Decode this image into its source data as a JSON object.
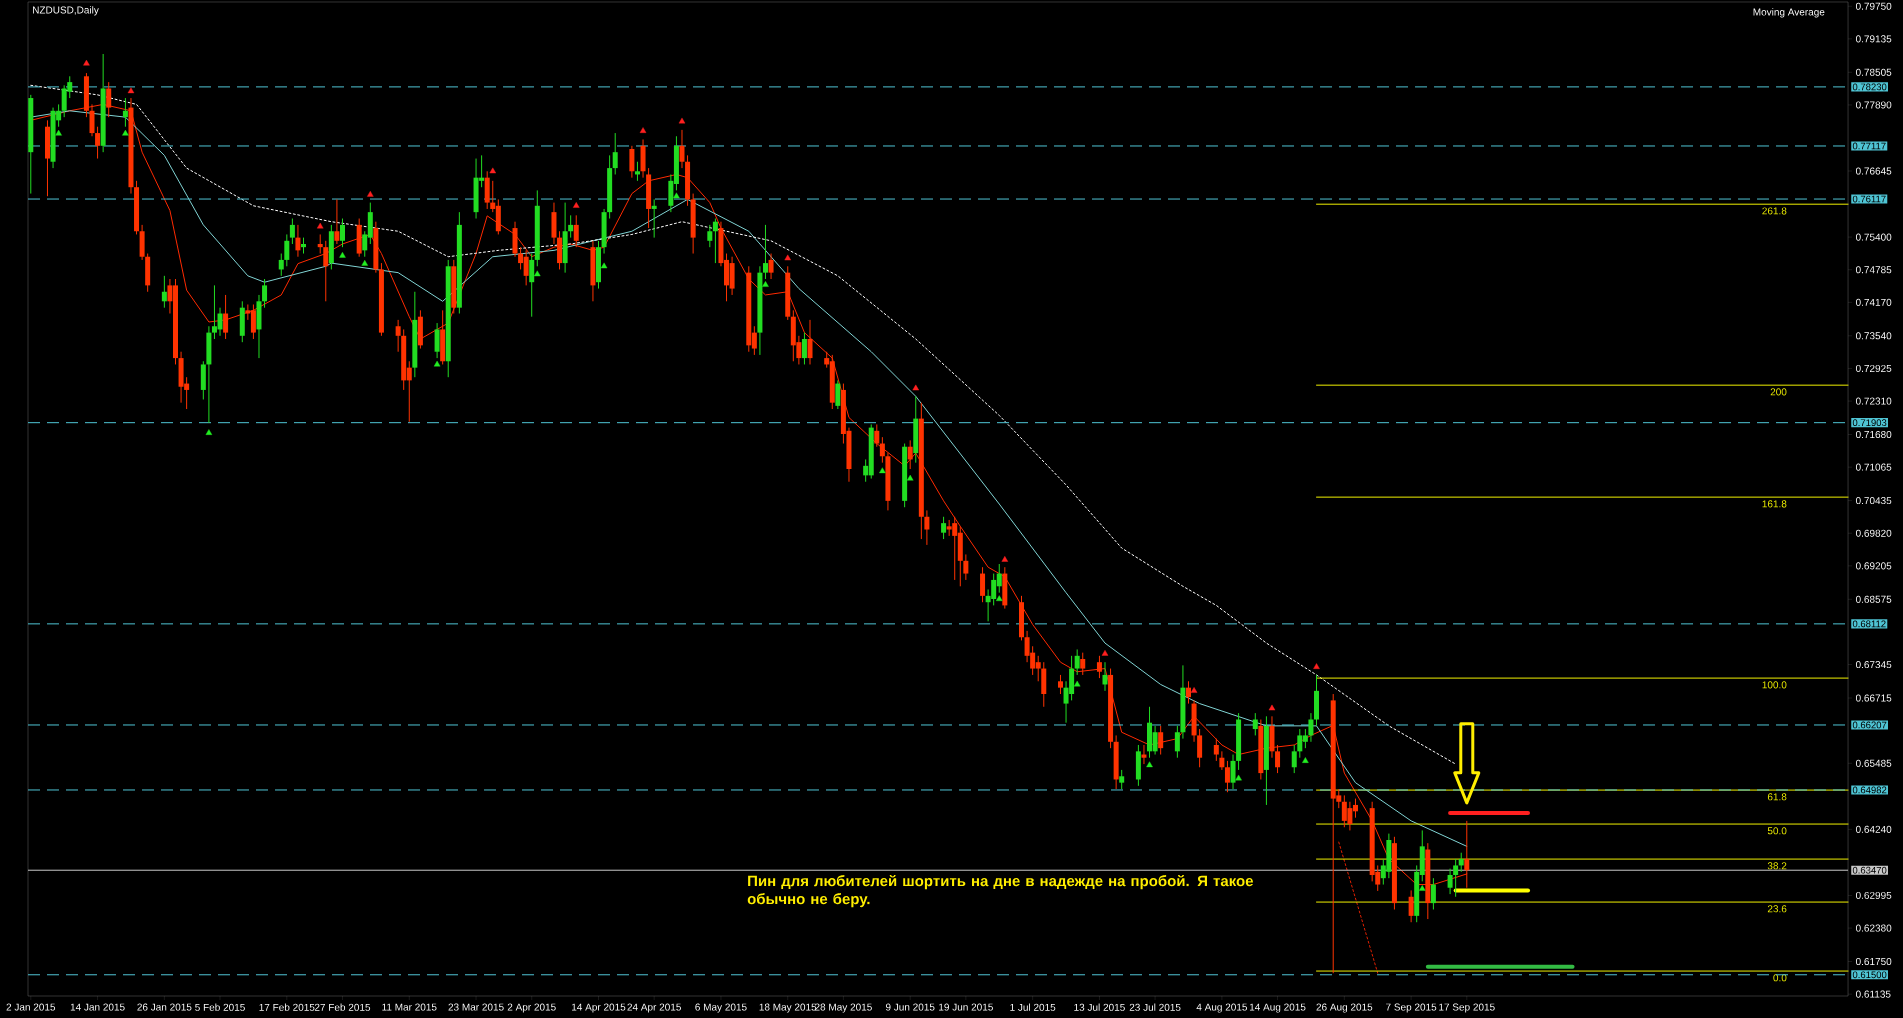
{
  "chart_data": {
    "type": "candlestick",
    "title": "NZDUSD,Daily",
    "annotations": [
      "Moving Average",
      "Пин для любителей шортить на дне в надежде на пробой. Я такое обычно не беру."
    ],
    "xlim": [
      "2015-01-01T12:00",
      "2015-11-24T12:00"
    ],
    "ylim": [
      0.611,
      0.7983
    ],
    "xticks": [
      {
        "value": "2015-01-02",
        "label": "2 Jan 2015"
      },
      {
        "value": "2015-01-14",
        "label": "14 Jan 2015"
      },
      {
        "value": "2015-01-26",
        "label": "26 Jan 2015"
      },
      {
        "value": "2015-02-05",
        "label": "5 Feb 2015"
      },
      {
        "value": "2015-02-17",
        "label": "17 Feb 2015"
      },
      {
        "value": "2015-02-27",
        "label": "27 Feb 2015"
      },
      {
        "value": "2015-03-11",
        "label": "11 Mar 2015"
      },
      {
        "value": "2015-03-23",
        "label": "23 Mar 2015"
      },
      {
        "value": "2015-04-02",
        "label": "2 Apr 2015"
      },
      {
        "value": "2015-04-14",
        "label": "14 Apr 2015"
      },
      {
        "value": "2015-04-24",
        "label": "24 Apr 2015"
      },
      {
        "value": "2015-05-06",
        "label": "6 May 2015"
      },
      {
        "value": "2015-05-18",
        "label": "18 May 2015"
      },
      {
        "value": "2015-05-28",
        "label": "28 May 2015"
      },
      {
        "value": "2015-06-09",
        "label": "9 Jun 2015"
      },
      {
        "value": "2015-06-19",
        "label": "19 Jun 2015"
      },
      {
        "value": "2015-07-01",
        "label": "1 Jul 2015"
      },
      {
        "value": "2015-07-13",
        "label": "13 Jul 2015"
      },
      {
        "value": "2015-07-23",
        "label": "23 Jul 2015"
      },
      {
        "value": "2015-08-04",
        "label": "4 Aug 2015"
      },
      {
        "value": "2015-08-14",
        "label": "14 Aug 2015"
      },
      {
        "value": "2015-08-26",
        "label": "26 Aug 2015"
      },
      {
        "value": "2015-09-07",
        "label": "7 Sep 2015"
      },
      {
        "value": "2015-09-17",
        "label": "17 Sep 2015"
      }
    ],
    "yticks": [
      {
        "value": 0.7975,
        "label": "0.79750"
      },
      {
        "value": 0.79135,
        "label": "0.79135"
      },
      {
        "value": 0.78505,
        "label": "0.78505"
      },
      {
        "value": 0.7789,
        "label": "0.77890"
      },
      {
        "value": 0.76645,
        "label": "0.76645"
      },
      {
        "value": 0.754,
        "label": "0.75400"
      },
      {
        "value": 0.74785,
        "label": "0.74785"
      },
      {
        "value": 0.7417,
        "label": "0.74170"
      },
      {
        "value": 0.7354,
        "label": "0.73540"
      },
      {
        "value": 0.72925,
        "label": "0.72925"
      },
      {
        "value": 0.7231,
        "label": "0.72310"
      },
      {
        "value": 0.7168,
        "label": "0.71680"
      },
      {
        "value": 0.71065,
        "label": "0.71065"
      },
      {
        "value": 0.70435,
        "label": "0.70435"
      },
      {
        "value": 0.6982,
        "label": "0.69820"
      },
      {
        "value": 0.69205,
        "label": "0.69205"
      },
      {
        "value": 0.68575,
        "label": "0.68575"
      },
      {
        "value": 0.67345,
        "label": "0.67345"
      },
      {
        "value": 0.66715,
        "label": "0.66715"
      },
      {
        "value": 0.65485,
        "label": "0.65485"
      },
      {
        "value": 0.6424,
        "label": "0.64240"
      },
      {
        "value": 0.62995,
        "label": "0.62995"
      },
      {
        "value": 0.6238,
        "label": "0.62380"
      },
      {
        "value": 0.6175,
        "label": "0.61750"
      },
      {
        "value": 0.61135,
        "label": "0.61135"
      }
    ],
    "ref_lines": [
      {
        "axis": "y",
        "value": 0.7823,
        "label": "0.78230",
        "color": "#4fc4d4",
        "line_style": "dashed"
      },
      {
        "axis": "y",
        "value": 0.77117,
        "label": "0.77117",
        "color": "#4fc4d4",
        "line_style": "dashed"
      },
      {
        "axis": "y",
        "value": 0.76117,
        "label": "0.76117",
        "color": "#4fc4d4",
        "line_style": "dashed"
      },
      {
        "axis": "y",
        "value": 0.71903,
        "label": "0.71903",
        "color": "#4fc4d4",
        "line_style": "dashed"
      },
      {
        "axis": "y",
        "value": 0.68112,
        "label": "0.68112",
        "color": "#4fc4d4",
        "line_style": "dashed"
      },
      {
        "axis": "y",
        "value": 0.66207,
        "label": "0.66207",
        "color": "#4fc4d4",
        "line_style": "dashed"
      },
      {
        "axis": "y",
        "value": 0.64982,
        "label": "0.64982",
        "color": "#4fc4d4",
        "line_style": "dashed"
      },
      {
        "axis": "y",
        "value": 0.615,
        "label": "0.61500",
        "color": "#4fc4d4",
        "line_style": "dashed"
      },
      {
        "axis": "y",
        "value": 0.6347,
        "label": "0.63470",
        "color": "#c8c8c8",
        "line_style": "solid"
      }
    ],
    "x": [
      "2015-01-02",
      "2015-01-05",
      "2015-01-06",
      "2015-01-07",
      "2015-01-08",
      "2015-01-09",
      "2015-01-12",
      "2015-01-13",
      "2015-01-14",
      "2015-01-15",
      "2015-01-16",
      "2015-01-19",
      "2015-01-20",
      "2015-01-21",
      "2015-01-22",
      "2015-01-23",
      "2015-01-26",
      "2015-01-27",
      "2015-01-28",
      "2015-01-29",
      "2015-01-30",
      "2015-02-02",
      "2015-02-03",
      "2015-02-04",
      "2015-02-05",
      "2015-02-06",
      "2015-02-09",
      "2015-02-10",
      "2015-02-11",
      "2015-02-12",
      "2015-02-13",
      "2015-02-16",
      "2015-02-17",
      "2015-02-18",
      "2015-02-19",
      "2015-02-20",
      "2015-02-23",
      "2015-02-24",
      "2015-02-25",
      "2015-02-26",
      "2015-02-27",
      "2015-03-02",
      "2015-03-03",
      "2015-03-04",
      "2015-03-05",
      "2015-03-06",
      "2015-03-09",
      "2015-03-10",
      "2015-03-11",
      "2015-03-12",
      "2015-03-13",
      "2015-03-16",
      "2015-03-17",
      "2015-03-18",
      "2015-03-19",
      "2015-03-20",
      "2015-03-23",
      "2015-03-24",
      "2015-03-25",
      "2015-03-26",
      "2015-03-27",
      "2015-03-30",
      "2015-03-31",
      "2015-04-01",
      "2015-04-02",
      "2015-04-03",
      "2015-04-06",
      "2015-04-07",
      "2015-04-08",
      "2015-04-09",
      "2015-04-10",
      "2015-04-13",
      "2015-04-14",
      "2015-04-15",
      "2015-04-16",
      "2015-04-17",
      "2015-04-20",
      "2015-04-21",
      "2015-04-22",
      "2015-04-23",
      "2015-04-24",
      "2015-04-27",
      "2015-04-28",
      "2015-04-29",
      "2015-04-30",
      "2015-05-01",
      "2015-05-04",
      "2015-05-05",
      "2015-05-06",
      "2015-05-07",
      "2015-05-08",
      "2015-05-11",
      "2015-05-12",
      "2015-05-13",
      "2015-05-14",
      "2015-05-15",
      "2015-05-18",
      "2015-05-19",
      "2015-05-20",
      "2015-05-21",
      "2015-05-22",
      "2015-05-25",
      "2015-05-26",
      "2015-05-27",
      "2015-05-28",
      "2015-05-29",
      "2015-06-01",
      "2015-06-02",
      "2015-06-03",
      "2015-06-04",
      "2015-06-05",
      "2015-06-08",
      "2015-06-09",
      "2015-06-10",
      "2015-06-11",
      "2015-06-12",
      "2015-06-15",
      "2015-06-16",
      "2015-06-17",
      "2015-06-18",
      "2015-06-19",
      "2015-06-22",
      "2015-06-23",
      "2015-06-24",
      "2015-06-25",
      "2015-06-26",
      "2015-06-29",
      "2015-06-30",
      "2015-07-01",
      "2015-07-02",
      "2015-07-03",
      "2015-07-06",
      "2015-07-07",
      "2015-07-08",
      "2015-07-09",
      "2015-07-10",
      "2015-07-13",
      "2015-07-14",
      "2015-07-15",
      "2015-07-16",
      "2015-07-17",
      "2015-07-20",
      "2015-07-21",
      "2015-07-22",
      "2015-07-23",
      "2015-07-24",
      "2015-07-27",
      "2015-07-28",
      "2015-07-29",
      "2015-07-30",
      "2015-07-31",
      "2015-08-03",
      "2015-08-04",
      "2015-08-05",
      "2015-08-06",
      "2015-08-07",
      "2015-08-10",
      "2015-08-11",
      "2015-08-12",
      "2015-08-13",
      "2015-08-14",
      "2015-08-17",
      "2015-08-18",
      "2015-08-19",
      "2015-08-20",
      "2015-08-21",
      "2015-08-24",
      "2015-08-25",
      "2015-08-26",
      "2015-08-27",
      "2015-08-28",
      "2015-08-31",
      "2015-09-01",
      "2015-09-02",
      "2015-09-03",
      "2015-09-04",
      "2015-09-07",
      "2015-09-08",
      "2015-09-09",
      "2015-09-10",
      "2015-09-11",
      "2015-09-14",
      "2015-09-15",
      "2015-09-16",
      "2015-09-17"
    ],
    "ohlc": [
      [
        0.77,
        0.7808,
        0.7622,
        0.7802
      ],
      [
        0.7748,
        0.776,
        0.7617,
        0.7688
      ],
      [
        0.7682,
        0.7784,
        0.767,
        0.7778
      ],
      [
        0.776,
        0.779,
        0.7748,
        0.7778
      ],
      [
        0.7778,
        0.7826,
        0.7766,
        0.782
      ],
      [
        0.7814,
        0.7843,
        0.7802,
        0.7832
      ],
      [
        0.7843,
        0.7849,
        0.7766,
        0.7778
      ],
      [
        0.7778,
        0.779,
        0.773,
        0.7736
      ],
      [
        0.7736,
        0.7748,
        0.7688,
        0.7712
      ],
      [
        0.7712,
        0.7885,
        0.77,
        0.782
      ],
      [
        0.782,
        0.7832,
        0.7766,
        0.7784
      ],
      [
        0.7766,
        0.7802,
        0.7748,
        0.7778
      ],
      [
        0.7784,
        0.7802,
        0.7622,
        0.7634
      ],
      [
        0.7634,
        0.7646,
        0.7545,
        0.7551
      ],
      [
        0.7551,
        0.7563,
        0.7497,
        0.7503
      ],
      [
        0.7503,
        0.7509,
        0.7437,
        0.7449
      ],
      [
        0.7419,
        0.7467,
        0.7407,
        0.7437
      ],
      [
        0.7449,
        0.7461,
        0.7396,
        0.7419
      ],
      [
        0.7449,
        0.7461,
        0.73,
        0.7312
      ],
      [
        0.7312,
        0.7324,
        0.7228,
        0.7258
      ],
      [
        0.7264,
        0.7276,
        0.7216,
        0.7252
      ],
      [
        0.7252,
        0.7306,
        0.7234,
        0.73
      ],
      [
        0.73,
        0.7372,
        0.719,
        0.736
      ],
      [
        0.736,
        0.7449,
        0.7348,
        0.7372
      ],
      [
        0.7366,
        0.7407,
        0.7354,
        0.7396
      ],
      [
        0.7396,
        0.7431,
        0.7348,
        0.736
      ],
      [
        0.7354,
        0.7419,
        0.7342,
        0.7407
      ],
      [
        0.7402,
        0.7413,
        0.7384,
        0.7396
      ],
      [
        0.7402,
        0.7413,
        0.7348,
        0.736
      ],
      [
        0.7366,
        0.7431,
        0.7312,
        0.7419
      ],
      [
        0.7419,
        0.7461,
        0.7407,
        0.7449
      ],
      [
        0.7479,
        0.7509,
        0.7467,
        0.7497
      ],
      [
        0.7497,
        0.7545,
        0.7485,
        0.7533
      ],
      [
        0.7539,
        0.7575,
        0.7527,
        0.7563
      ],
      [
        0.7539,
        0.7563,
        0.7503,
        0.7515
      ],
      [
        0.7521,
        0.7539,
        0.7509,
        0.7527
      ],
      [
        0.7527,
        0.7545,
        0.7509,
        0.7521
      ],
      [
        0.7521,
        0.7533,
        0.7419,
        0.7485
      ],
      [
        0.7491,
        0.7563,
        0.7479,
        0.7551
      ],
      [
        0.7551,
        0.7611,
        0.7527,
        0.7533
      ],
      [
        0.7533,
        0.7575,
        0.7521,
        0.7563
      ],
      [
        0.7563,
        0.7575,
        0.7503,
        0.7509
      ],
      [
        0.7515,
        0.7551,
        0.7503,
        0.7545
      ],
      [
        0.7539,
        0.7605,
        0.7527,
        0.7587
      ],
      [
        0.7557,
        0.7569,
        0.7473,
        0.7479
      ],
      [
        0.7479,
        0.7491,
        0.7354,
        0.736
      ],
      [
        0.7372,
        0.7384,
        0.7324,
        0.7354
      ],
      [
        0.7354,
        0.7366,
        0.7252,
        0.727
      ],
      [
        0.7294,
        0.7306,
        0.7192,
        0.727
      ],
      [
        0.7294,
        0.7437,
        0.7276,
        0.7384
      ],
      [
        0.739,
        0.7402,
        0.733,
        0.7336
      ],
      [
        0.7324,
        0.7378,
        0.7312,
        0.7366
      ],
      [
        0.7366,
        0.7402,
        0.73,
        0.7306
      ],
      [
        0.7306,
        0.7497,
        0.7276,
        0.7485
      ],
      [
        0.7485,
        0.7497,
        0.7396,
        0.7407
      ],
      [
        0.7407,
        0.7587,
        0.7396,
        0.7563
      ],
      [
        0.7587,
        0.7688,
        0.7575,
        0.7652
      ],
      [
        0.7646,
        0.7694,
        0.7634,
        0.7652
      ],
      [
        0.7652,
        0.7664,
        0.7593,
        0.7605
      ],
      [
        0.7605,
        0.7646,
        0.7587,
        0.7593
      ],
      [
        0.7599,
        0.7611,
        0.7545,
        0.7551
      ],
      [
        0.7557,
        0.7569,
        0.7503,
        0.7509
      ],
      [
        0.7509,
        0.7521,
        0.7479,
        0.7491
      ],
      [
        0.7503,
        0.7515,
        0.7449,
        0.7467
      ],
      [
        0.7455,
        0.7509,
        0.739,
        0.7497
      ],
      [
        0.7497,
        0.7628,
        0.7485,
        0.7599
      ],
      [
        0.7587,
        0.7605,
        0.7527,
        0.7539
      ],
      [
        0.7539,
        0.7551,
        0.7479,
        0.7491
      ],
      [
        0.7491,
        0.7605,
        0.7473,
        0.7551
      ],
      [
        0.7551,
        0.7581,
        0.7539,
        0.7563
      ],
      [
        0.7563,
        0.7581,
        0.7521,
        0.7533
      ],
      [
        0.7521,
        0.7533,
        0.7419,
        0.7449
      ],
      [
        0.7455,
        0.7533,
        0.7443,
        0.7521
      ],
      [
        0.7521,
        0.7593,
        0.7509,
        0.7587
      ],
      [
        0.7587,
        0.7694,
        0.7575,
        0.767
      ],
      [
        0.767,
        0.7736,
        0.7658,
        0.77
      ],
      [
        0.7706,
        0.7712,
        0.7652,
        0.7664
      ],
      [
        0.7658,
        0.7682,
        0.7646,
        0.7664
      ],
      [
        0.7712,
        0.7724,
        0.7652,
        0.7664
      ],
      [
        0.7658,
        0.767,
        0.7557,
        0.7593
      ],
      [
        0.7593,
        0.7611,
        0.7539,
        0.7599
      ],
      [
        0.7599,
        0.7658,
        0.7587,
        0.7646
      ],
      [
        0.764,
        0.773,
        0.7628,
        0.7712
      ],
      [
        0.7712,
        0.7742,
        0.767,
        0.7682
      ],
      [
        0.7682,
        0.7694,
        0.7599,
        0.7611
      ],
      [
        0.7611,
        0.7622,
        0.7509,
        0.7539
      ],
      [
        0.7533,
        0.7563,
        0.7521,
        0.7551
      ],
      [
        0.7551,
        0.7575,
        0.7491,
        0.7569
      ],
      [
        0.7557,
        0.7569,
        0.7485,
        0.7491
      ],
      [
        0.7497,
        0.7509,
        0.7419,
        0.7449
      ],
      [
        0.7491,
        0.7503,
        0.7431,
        0.7443
      ],
      [
        0.7473,
        0.7485,
        0.7324,
        0.7336
      ],
      [
        0.736,
        0.7372,
        0.7318,
        0.733
      ],
      [
        0.736,
        0.7485,
        0.7318,
        0.7473
      ],
      [
        0.7473,
        0.7563,
        0.7461,
        0.7491
      ],
      [
        0.7497,
        0.7509,
        0.7461,
        0.7473
      ],
      [
        0.7473,
        0.7485,
        0.7384,
        0.739
      ],
      [
        0.739,
        0.7402,
        0.7306,
        0.7336
      ],
      [
        0.7342,
        0.7354,
        0.73,
        0.7312
      ],
      [
        0.7312,
        0.736,
        0.73,
        0.7348
      ],
      [
        0.7348,
        0.7384,
        0.73,
        0.7312
      ],
      [
        0.7312,
        0.7324,
        0.7294,
        0.73
      ],
      [
        0.7306,
        0.7318,
        0.7216,
        0.7228
      ],
      [
        0.7222,
        0.727,
        0.7216,
        0.7264
      ],
      [
        0.7252,
        0.7264,
        0.7151,
        0.7169
      ],
      [
        0.7175,
        0.7181,
        0.7079,
        0.7103
      ],
      [
        0.7091,
        0.7121,
        0.7079,
        0.7109
      ],
      [
        0.7091,
        0.7187,
        0.7085,
        0.7181
      ],
      [
        0.7175,
        0.7187,
        0.7145,
        0.7151
      ],
      [
        0.7151,
        0.7163,
        0.7115,
        0.7127
      ],
      [
        0.7127,
        0.7133,
        0.7025,
        0.7043
      ],
      [
        0.7043,
        0.7151,
        0.7031,
        0.7145
      ],
      [
        0.7145,
        0.7157,
        0.7103,
        0.7121
      ],
      [
        0.7133,
        0.724,
        0.7115,
        0.7198
      ],
      [
        0.7198,
        0.7228,
        0.6971,
        0.7013
      ],
      [
        0.7013,
        0.7025,
        0.696,
        0.6989
      ],
      [
        0.6983,
        0.7013,
        0.6971,
        0.7001
      ],
      [
        0.6995,
        0.7007,
        0.6977,
        0.6989
      ],
      [
        0.7001,
        0.7013,
        0.6894,
        0.6977
      ],
      [
        0.6983,
        0.6995,
        0.6882,
        0.693
      ],
      [
        0.693,
        0.6942,
        0.6894,
        0.6906
      ],
      [
        0.6906,
        0.6918,
        0.6852,
        0.6864
      ],
      [
        0.6852,
        0.6876,
        0.6816,
        0.6864
      ],
      [
        0.6858,
        0.6906,
        0.6846,
        0.6894
      ],
      [
        0.6882,
        0.6924,
        0.687,
        0.6906
      ],
      [
        0.6906,
        0.6918,
        0.684,
        0.6846
      ],
      [
        0.6852,
        0.6864,
        0.678,
        0.6786
      ],
      [
        0.6786,
        0.6798,
        0.6739,
        0.6751
      ],
      [
        0.6757,
        0.6769,
        0.6715,
        0.6727
      ],
      [
        0.6739,
        0.6751,
        0.6703,
        0.6727
      ],
      [
        0.6727,
        0.6739,
        0.6655,
        0.6679
      ],
      [
        0.6703,
        0.6715,
        0.6679,
        0.6691
      ],
      [
        0.6661,
        0.6703,
        0.6625,
        0.6691
      ],
      [
        0.6679,
        0.6751,
        0.6667,
        0.6727
      ],
      [
        0.6727,
        0.6763,
        0.6715,
        0.6751
      ],
      [
        0.6745,
        0.6757,
        0.6715,
        0.6727
      ],
      [
        0.6739,
        0.6751,
        0.6709,
        0.6721
      ],
      [
        0.6697,
        0.6739,
        0.6685,
        0.6715
      ],
      [
        0.6715,
        0.6727,
        0.6577,
        0.6589
      ],
      [
        0.6589,
        0.6601,
        0.65,
        0.6518
      ],
      [
        0.6512,
        0.6536,
        0.65,
        0.6524
      ],
      [
        0.6518,
        0.6583,
        0.6506,
        0.6571
      ],
      [
        0.6565,
        0.6583,
        0.6547,
        0.6559
      ],
      [
        0.6571,
        0.6655,
        0.6559,
        0.6625
      ],
      [
        0.6571,
        0.6619,
        0.6565,
        0.6607
      ],
      [
        0.6607,
        0.6619,
        0.6565,
        0.6577
      ],
      [
        0.6571,
        0.6619,
        0.6559,
        0.6607
      ],
      [
        0.6607,
        0.6733,
        0.6595,
        0.6691
      ],
      [
        0.6691,
        0.6703,
        0.6661,
        0.6673
      ],
      [
        0.6661,
        0.6667,
        0.6589,
        0.6601
      ],
      [
        0.6601,
        0.6613,
        0.6541,
        0.6559
      ],
      [
        0.6583,
        0.6595,
        0.6553,
        0.6565
      ],
      [
        0.6559,
        0.6571,
        0.6536,
        0.6541
      ],
      [
        0.6541,
        0.6553,
        0.6494,
        0.6512
      ],
      [
        0.6512,
        0.6565,
        0.65,
        0.6553
      ],
      [
        0.6553,
        0.6643,
        0.6536,
        0.6631
      ],
      [
        0.6613,
        0.6643,
        0.6601,
        0.6631
      ],
      [
        0.6619,
        0.6631,
        0.6518,
        0.653
      ],
      [
        0.6536,
        0.6637,
        0.647,
        0.6619
      ],
      [
        0.6619,
        0.6637,
        0.6559,
        0.6571
      ],
      [
        0.6571,
        0.6583,
        0.653,
        0.6541
      ],
      [
        0.6541,
        0.6583,
        0.653,
        0.6571
      ],
      [
        0.6571,
        0.6613,
        0.6559,
        0.6601
      ],
      [
        0.6589,
        0.6613,
        0.6577,
        0.6601
      ],
      [
        0.6601,
        0.6643,
        0.6589,
        0.6631
      ],
      [
        0.6631,
        0.6715,
        0.6619,
        0.6685
      ],
      [
        0.6667,
        0.6679,
        0.6153,
        0.6482
      ],
      [
        0.6488,
        0.65,
        0.6464,
        0.6476
      ],
      [
        0.6476,
        0.6488,
        0.6428,
        0.644
      ],
      [
        0.6464,
        0.6476,
        0.6422,
        0.6434
      ],
      [
        0.647,
        0.6482,
        0.6446,
        0.6458
      ],
      [
        0.6464,
        0.6476,
        0.6326,
        0.6338
      ],
      [
        0.6344,
        0.6356,
        0.6308,
        0.632
      ],
      [
        0.6332,
        0.6368,
        0.632,
        0.6356
      ],
      [
        0.6344,
        0.6416,
        0.6332,
        0.6404
      ],
      [
        0.6398,
        0.641,
        0.6273,
        0.6285
      ],
      [
        0.6297,
        0.6309,
        0.6249,
        0.6261
      ],
      [
        0.6261,
        0.6356,
        0.6249,
        0.6344
      ],
      [
        0.6338,
        0.6422,
        0.6326,
        0.6392
      ],
      [
        0.6386,
        0.6398,
        0.6255,
        0.6285
      ],
      [
        0.6285,
        0.6332,
        0.6273,
        0.632
      ],
      [
        0.6314,
        0.635,
        0.6302,
        0.6338
      ],
      [
        0.6338,
        0.6368,
        0.6297,
        0.6356
      ],
      [
        0.6356,
        0.638,
        0.6344,
        0.6368
      ],
      [
        0.6368,
        0.644,
        0.6314,
        0.6347
      ]
    ],
    "series": [
      {
        "type": "line",
        "color": "#ff2a00",
        "x": [
          "2015-01-02",
          "2015-01-09",
          "2015-01-15",
          "2015-01-20",
          "2015-01-22",
          "2015-01-27",
          "2015-01-30",
          "2015-02-03",
          "2015-02-06",
          "2015-02-11",
          "2015-02-16",
          "2015-02-19",
          "2015-02-24",
          "2015-02-27",
          "2015-03-04",
          "2015-03-06",
          "2015-03-11",
          "2015-03-13",
          "2015-03-18",
          "2015-03-23",
          "2015-03-25",
          "2015-03-30",
          "2015-04-02",
          "2015-04-06",
          "2015-04-09",
          "2015-04-13",
          "2015-04-15",
          "2015-04-20",
          "2015-04-23",
          "2015-04-28",
          "2015-04-30",
          "2015-05-04",
          "2015-05-06",
          "2015-05-11",
          "2015-05-14",
          "2015-05-18",
          "2015-05-21",
          "2015-05-26",
          "2015-05-29",
          "2015-06-03",
          "2015-06-08",
          "2015-06-10",
          "2015-06-15",
          "2015-06-18",
          "2015-06-23",
          "2015-06-26",
          "2015-07-01",
          "2015-07-06",
          "2015-07-09",
          "2015-07-14",
          "2015-07-17",
          "2015-07-22",
          "2015-07-27",
          "2015-07-30",
          "2015-08-04",
          "2015-08-07",
          "2015-08-12",
          "2015-08-17",
          "2015-08-20",
          "2015-08-24",
          "2015-08-26",
          "2015-08-31",
          "2015-09-03",
          "2015-09-08",
          "2015-09-11",
          "2015-09-17"
        ],
        "values": [
          0.776,
          0.7778,
          0.779,
          0.7778,
          0.77,
          0.759,
          0.744,
          0.738,
          0.7384,
          0.7402,
          0.7431,
          0.749,
          0.7509,
          0.7527,
          0.7545,
          0.7509,
          0.739,
          0.7348,
          0.7378,
          0.7509,
          0.758,
          0.7545,
          0.7503,
          0.7521,
          0.7527,
          0.7515,
          0.7521,
          0.7622,
          0.7646,
          0.7658,
          0.7652,
          0.7605,
          0.7557,
          0.7461,
          0.7431,
          0.7437,
          0.736,
          0.7312,
          0.72,
          0.7151,
          0.7109,
          0.7133,
          0.7043,
          0.6995,
          0.6918,
          0.69,
          0.681,
          0.6739,
          0.6721,
          0.6727,
          0.6607,
          0.6583,
          0.6595,
          0.6637,
          0.6583,
          0.6565,
          0.6577,
          0.6583,
          0.6601,
          0.662,
          0.653,
          0.644,
          0.6368,
          0.632,
          0.632,
          0.634
        ]
      },
      {
        "type": "line",
        "color": "#80d4d4",
        "x": [
          "2015-01-02",
          "2015-01-09",
          "2015-01-19",
          "2015-01-26",
          "2015-02-02",
          "2015-02-10",
          "2015-02-13",
          "2015-02-24",
          "2015-02-25",
          "2015-03-09",
          "2015-03-17",
          "2015-03-26",
          "2015-04-06",
          "2015-04-20",
          "2015-04-30",
          "2015-05-11",
          "2015-05-20",
          "2015-06-02",
          "2015-06-10",
          "2015-06-25",
          "2015-07-07",
          "2015-07-14",
          "2015-07-24",
          "2015-07-31",
          "2015-08-12",
          "2015-08-21",
          "2015-08-28",
          "2015-09-07",
          "2015-09-17"
        ],
        "values": [
          0.7766,
          0.7778,
          0.7766,
          0.7694,
          0.7563,
          0.7467,
          0.7455,
          0.7485,
          0.7491,
          0.7473,
          0.7419,
          0.7503,
          0.7515,
          0.7551,
          0.7611,
          0.7551,
          0.7443,
          0.7324,
          0.724,
          0.7037,
          0.687,
          0.6775,
          0.6697,
          0.6661,
          0.6619,
          0.6619,
          0.6512,
          0.644,
          0.6392
        ]
      },
      {
        "type": "line",
        "color": "#ffffff",
        "line_style": "dotted",
        "x": [
          "2015-01-02",
          "2015-01-14",
          "2015-01-21",
          "2015-01-30",
          "2015-02-11",
          "2015-02-25",
          "2015-03-09",
          "2015-03-18",
          "2015-03-27",
          "2015-04-09",
          "2015-04-20",
          "2015-04-29",
          "2015-05-15",
          "2015-05-27",
          "2015-06-10",
          "2015-06-25",
          "2015-07-07",
          "2015-07-17",
          "2015-07-28",
          "2015-08-03",
          "2015-08-12",
          "2015-08-21",
          "2015-09-03",
          "2015-09-15"
        ],
        "values": [
          0.7826,
          0.7808,
          0.779,
          0.767,
          0.7599,
          0.7569,
          0.7551,
          0.7503,
          0.7515,
          0.7527,
          0.7545,
          0.7569,
          0.7533,
          0.7467,
          0.7348,
          0.7204,
          0.7073,
          0.6954,
          0.6882,
          0.6846,
          0.6775,
          0.6715,
          0.6619,
          0.6547
        ]
      },
      {
        "type": "line",
        "color": "#e02000",
        "line_style": "dotted",
        "x": [
          "2015-08-25",
          "2015-09-01"
        ],
        "values": [
          0.64,
          0.6153
        ]
      },
      {
        "type": "line",
        "name": "261.8",
        "color": "#f0f000",
        "x": [
          "2015-08-21",
          "2015-11-24T12:00"
        ],
        "values": [
          0.7602,
          0.7602
        ]
      },
      {
        "type": "line",
        "name": "200",
        "color": "#f0f000",
        "x": [
          "2015-08-21",
          "2015-11-24T12:00"
        ],
        "values": [
          0.7261,
          0.7261
        ]
      },
      {
        "type": "line",
        "name": "161.8",
        "color": "#f0f000",
        "x": [
          "2015-08-21",
          "2015-11-24T12:00"
        ],
        "values": [
          0.705,
          0.705
        ]
      },
      {
        "type": "line",
        "name": "100.0",
        "color": "#f0f000",
        "x": [
          "2015-08-21",
          "2015-11-24T12:00"
        ],
        "values": [
          0.6709,
          0.6709
        ]
      },
      {
        "type": "line",
        "name": "61.8",
        "color": "#f0f000",
        "x": [
          "2015-08-21",
          "2015-11-24T12:00"
        ],
        "values": [
          0.6498,
          0.6498
        ]
      },
      {
        "type": "line",
        "name": "50.0",
        "color": "#f0f000",
        "x": [
          "2015-08-21",
          "2015-11-24T12:00"
        ],
        "values": [
          0.6434,
          0.6434
        ]
      },
      {
        "type": "line",
        "name": "38.2",
        "color": "#f0f000",
        "x": [
          "2015-08-21",
          "2015-11-24T12:00"
        ],
        "values": [
          0.6368,
          0.6368
        ]
      },
      {
        "type": "line",
        "name": "23.6",
        "color": "#f0f000",
        "x": [
          "2015-08-21",
          "2015-11-24T12:00"
        ],
        "values": [
          0.6287,
          0.6287
        ]
      },
      {
        "type": "line",
        "name": "0.0",
        "color": "#f0f000",
        "x": [
          "2015-08-21",
          "2015-11-24T12:00"
        ],
        "values": [
          0.6157,
          0.6157
        ]
      },
      {
        "type": "line",
        "color": "#ff2020",
        "x": [
          "2015-09-14",
          "2015-09-28"
        ],
        "values": [
          0.6455,
          0.6455
        ]
      },
      {
        "type": "line",
        "color": "#ffff00",
        "x": [
          "2015-09-15",
          "2015-09-28"
        ],
        "values": [
          0.6309,
          0.6309
        ]
      },
      {
        "type": "line",
        "color": "#33bb44",
        "x": [
          "2015-09-10",
          "2015-10-06"
        ],
        "values": [
          0.6165,
          0.6165
        ]
      },
      {
        "type": "scatter",
        "marker": "triangle",
        "color": "#ff2020",
        "x": [
          "2015-01-12",
          "2015-01-20",
          "2015-02-23",
          "2015-03-04",
          "2015-03-26",
          "2015-04-10",
          "2015-04-22",
          "2015-04-29",
          "2015-05-18",
          "2015-06-10",
          "2015-06-26",
          "2015-07-14",
          "2015-07-30",
          "2015-08-13",
          "2015-08-21"
        ],
        "values": [
          0.7867,
          0.7815,
          0.756,
          0.762,
          0.7664,
          0.7599,
          0.774,
          0.7758,
          0.75,
          0.7255,
          0.6932,
          0.6755,
          0.6685,
          0.6652,
          0.673
        ]
      },
      {
        "type": "scatter",
        "marker": "triangle",
        "color": "#22ee22",
        "x": [
          "2015-01-07",
          "2015-01-19",
          "2015-02-03",
          "2015-02-27",
          "2015-03-03",
          "2015-03-16",
          "2015-04-03",
          "2015-04-15",
          "2015-04-28",
          "2015-05-14",
          "2015-06-04",
          "2015-06-09",
          "2015-06-25",
          "2015-07-09",
          "2015-07-22",
          "2015-08-07",
          "2015-08-19",
          "2015-09-09"
        ],
        "values": [
          0.7735,
          0.7735,
          0.7171,
          0.7505,
          0.749,
          0.73,
          0.747,
          0.7485,
          0.7617,
          0.745,
          0.7099,
          0.7085,
          0.6858,
          0.6697,
          0.6545,
          0.652,
          0.6553,
          0.6312
        ]
      }
    ]
  }
}
